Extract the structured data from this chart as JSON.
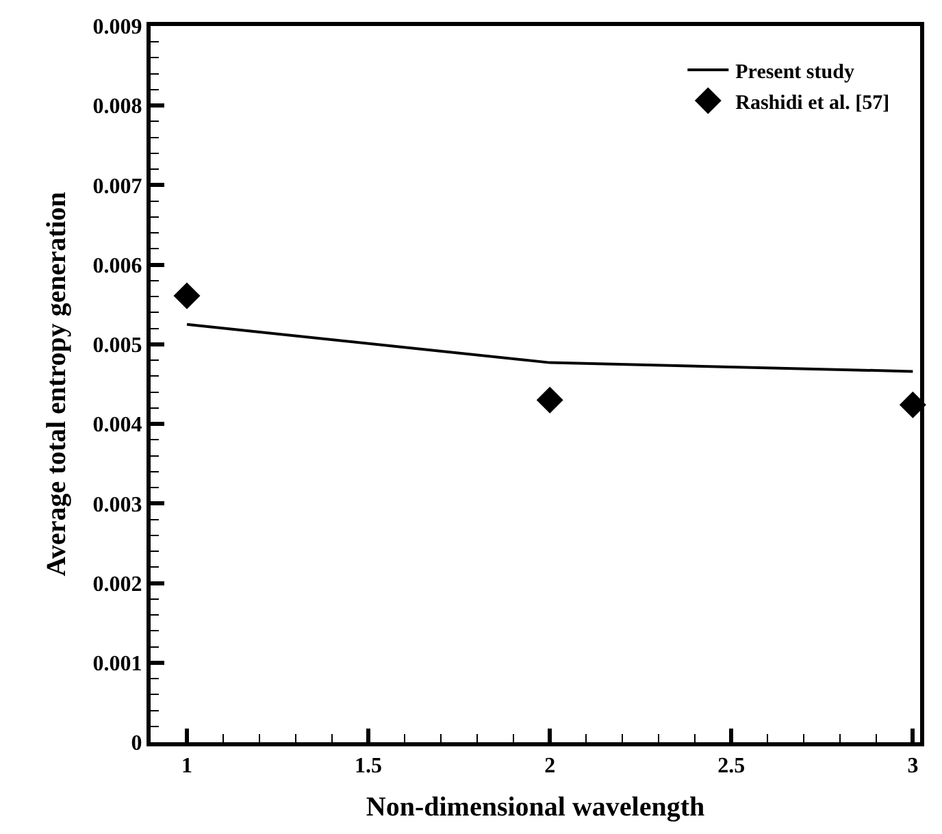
{
  "chart_data": {
    "type": "line",
    "xlabel": "Non-dimensional wavelength",
    "ylabel": "Average total entropy generation",
    "x": [
      1,
      2,
      3
    ],
    "series": [
      {
        "name": "Present study",
        "color": "#000000",
        "values": [
          0.00525,
          0.00477,
          0.00466
        ],
        "marker": "none",
        "line_style": "solid"
      },
      {
        "name": "Rashidi et al. [57]",
        "type": "scatter",
        "color": "#000000",
        "values": [
          0.00561,
          0.0043,
          0.00424
        ],
        "marker": "diamond"
      }
    ],
    "xlim": [
      0.9,
      3.02
    ],
    "xticks": [
      1,
      1.5,
      2,
      2.5,
      3
    ],
    "ylim": [
      0,
      0.009
    ],
    "yticks": [
      0,
      0.001,
      0.002,
      0.003,
      0.004,
      0.005,
      0.006,
      0.007,
      0.008,
      0.009
    ],
    "legend": "top right"
  }
}
